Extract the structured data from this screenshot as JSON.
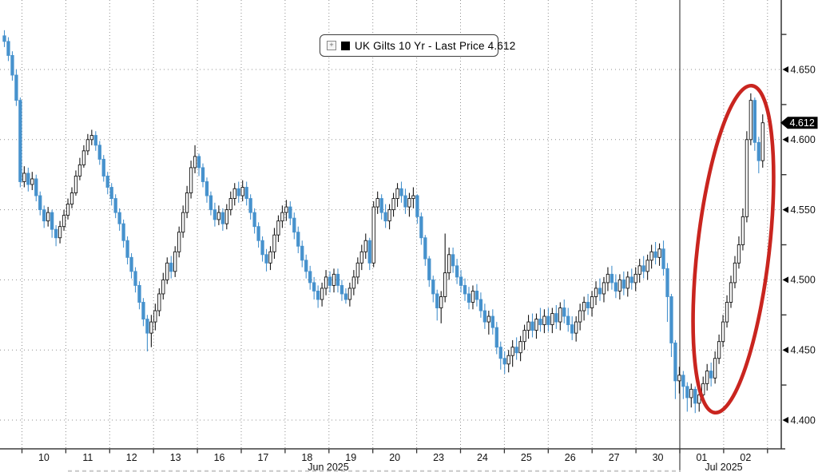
{
  "chart": {
    "legend": {
      "expander_glyph": "+",
      "series_marker_color": "#000000",
      "label": "UK Gilts 10 Yr - Last Price 4.612"
    },
    "last_price_badge": {
      "value": "4.612",
      "bg": "#000000",
      "text_color": "#ffffff"
    },
    "annotation": {
      "shape": "ellipse",
      "meaning": "highlight of Jul 01-02 yield spike",
      "color": "#c9251f"
    }
  },
  "chart_data": {
    "type": "candlestick",
    "title": "UK Gilts 10 Yr - Last Price 4.612",
    "series_name": "UK Gilts 10 Yr",
    "last_price": 4.612,
    "legend_position": "top-center",
    "grid": "dotted",
    "y_axis": {
      "side": "right",
      "min": 4.4,
      "max": 4.65,
      "major_tick": 0.05,
      "minor_tick": 0.025,
      "labels": [
        "4.650",
        "4.600",
        "4.550",
        "4.500",
        "4.450",
        "4.400"
      ]
    },
    "x_axis": {
      "day_labels": [
        "10",
        "11",
        "12",
        "13",
        "16",
        "17",
        "18",
        "19",
        "20",
        "23",
        "24",
        "25",
        "26",
        "27",
        "30",
        "01",
        "02"
      ],
      "month_labels": [
        "Jun 2025",
        "Jul 2025"
      ],
      "month_boundary_after_day_index": 14,
      "leading_stub_bars": 5,
      "bars_per_day": 11
    },
    "colors": {
      "up_fill": "#ffffff",
      "up_stroke": "#161616",
      "down": "#4792cd",
      "grid": "#8f8f8f",
      "axis": "#3d3d3d",
      "annotation_red": "#c9251f"
    },
    "bars_note": "each bar is [high, low, close]; open = previous bar close",
    "first_open": 4.674,
    "bars": [
      [
        4.678,
        4.666,
        4.67
      ],
      [
        4.673,
        4.656,
        4.66
      ],
      [
        4.663,
        4.642,
        4.646
      ],
      [
        4.65,
        4.624,
        4.628
      ],
      [
        4.63,
        4.566,
        4.57
      ],
      [
        4.581,
        4.566,
        4.576
      ],
      [
        4.58,
        4.563,
        4.568
      ],
      [
        4.577,
        4.564,
        4.572
      ],
      [
        4.575,
        4.556,
        4.56
      ],
      [
        4.563,
        4.546,
        4.55
      ],
      [
        4.553,
        4.537,
        4.542
      ],
      [
        4.552,
        4.538,
        4.548
      ],
      [
        4.55,
        4.53,
        4.536
      ],
      [
        4.539,
        4.524,
        4.53
      ],
      [
        4.542,
        4.526,
        4.538
      ],
      [
        4.55,
        4.535,
        4.546
      ],
      [
        4.558,
        4.543,
        4.554
      ],
      [
        4.566,
        4.551,
        4.562
      ],
      [
        4.578,
        4.56,
        4.574
      ],
      [
        4.587,
        4.571,
        4.582
      ],
      [
        4.596,
        4.58,
        4.592
      ],
      [
        4.604,
        4.589,
        4.6
      ],
      [
        4.607,
        4.596,
        4.603
      ],
      [
        4.606,
        4.592,
        4.596
      ],
      [
        4.599,
        4.582,
        4.586
      ],
      [
        4.589,
        4.57,
        4.574
      ],
      [
        4.577,
        4.561,
        4.566
      ],
      [
        4.569,
        4.553,
        4.558
      ],
      [
        4.561,
        4.544,
        4.548
      ],
      [
        4.551,
        4.535,
        4.54
      ],
      [
        4.543,
        4.523,
        4.528
      ],
      [
        4.531,
        4.511,
        4.516
      ],
      [
        4.519,
        4.501,
        4.506
      ],
      [
        4.509,
        4.491,
        4.496
      ],
      [
        4.499,
        4.479,
        4.484
      ],
      [
        4.487,
        4.467,
        4.472
      ],
      [
        4.475,
        4.449,
        4.462
      ],
      [
        4.475,
        4.452,
        4.47
      ],
      [
        4.483,
        4.464,
        4.478
      ],
      [
        4.494,
        4.474,
        4.49
      ],
      [
        4.505,
        4.486,
        4.5
      ],
      [
        4.516,
        4.497,
        4.512
      ],
      [
        4.517,
        4.501,
        4.506
      ],
      [
        4.524,
        4.502,
        4.52
      ],
      [
        4.538,
        4.516,
        4.534
      ],
      [
        4.553,
        4.53,
        4.548
      ],
      [
        4.567,
        4.544,
        4.562
      ],
      [
        4.585,
        4.558,
        4.58
      ],
      [
        4.596,
        4.576,
        4.588
      ],
      [
        4.59,
        4.574,
        4.58
      ],
      [
        4.583,
        4.566,
        4.57
      ],
      [
        4.573,
        4.555,
        4.56
      ],
      [
        4.563,
        4.546,
        4.55
      ],
      [
        4.555,
        4.538,
        4.543
      ],
      [
        4.553,
        4.539,
        4.548
      ],
      [
        4.551,
        4.535,
        4.54
      ],
      [
        4.554,
        4.536,
        4.55
      ],
      [
        4.563,
        4.546,
        4.558
      ],
      [
        4.569,
        4.553,
        4.565
      ],
      [
        4.57,
        4.555,
        4.56
      ],
      [
        4.571,
        4.556,
        4.566
      ],
      [
        4.57,
        4.553,
        4.558
      ],
      [
        4.561,
        4.543,
        4.548
      ],
      [
        4.551,
        4.533,
        4.538
      ],
      [
        4.541,
        4.523,
        4.528
      ],
      [
        4.531,
        4.513,
        4.518
      ],
      [
        4.522,
        4.506,
        4.512
      ],
      [
        4.524,
        4.507,
        4.52
      ],
      [
        4.537,
        4.515,
        4.532
      ],
      [
        4.546,
        4.527,
        4.542
      ],
      [
        4.553,
        4.537,
        4.548
      ],
      [
        4.557,
        4.542,
        4.552
      ],
      [
        4.556,
        4.539,
        4.544
      ],
      [
        4.548,
        4.529,
        4.534
      ],
      [
        4.538,
        4.519,
        4.524
      ],
      [
        4.528,
        4.509,
        4.514
      ],
      [
        4.518,
        4.501,
        4.506
      ],
      [
        4.51,
        4.493,
        4.498
      ],
      [
        4.502,
        4.486,
        4.492
      ],
      [
        4.496,
        4.48,
        4.486
      ],
      [
        4.498,
        4.481,
        4.494
      ],
      [
        4.507,
        4.489,
        4.502
      ],
      [
        4.506,
        4.491,
        4.496
      ],
      [
        4.508,
        4.491,
        4.504
      ],
      [
        4.508,
        4.491,
        4.496
      ],
      [
        4.5,
        4.485,
        4.49
      ],
      [
        4.494,
        4.483,
        4.486
      ],
      [
        4.498,
        4.481,
        4.494
      ],
      [
        4.507,
        4.489,
        4.502
      ],
      [
        4.516,
        4.497,
        4.512
      ],
      [
        4.525,
        4.507,
        4.52
      ],
      [
        4.533,
        4.515,
        4.528
      ],
      [
        4.53,
        4.507,
        4.512
      ],
      [
        4.556,
        4.509,
        4.552
      ],
      [
        4.563,
        4.547,
        4.558
      ],
      [
        4.561,
        4.543,
        4.548
      ],
      [
        4.554,
        4.537,
        4.542
      ],
      [
        4.554,
        4.536,
        4.55
      ],
      [
        4.562,
        4.545,
        4.558
      ],
      [
        4.569,
        4.552,
        4.565
      ],
      [
        4.57,
        4.555,
        4.56
      ],
      [
        4.565,
        4.547,
        4.552
      ],
      [
        4.562,
        4.545,
        4.558
      ],
      [
        4.566,
        4.551,
        4.56
      ],
      [
        4.561,
        4.54,
        4.545
      ],
      [
        4.548,
        4.525,
        4.53
      ],
      [
        4.532,
        4.51,
        4.515
      ],
      [
        4.517,
        4.495,
        4.5
      ],
      [
        4.503,
        4.484,
        4.49
      ],
      [
        4.493,
        4.471,
        4.48
      ],
      [
        4.492,
        4.469,
        4.488
      ],
      [
        4.533,
        4.484,
        4.505
      ],
      [
        4.523,
        4.5,
        4.518
      ],
      [
        4.523,
        4.505,
        4.51
      ],
      [
        4.515,
        4.497,
        4.502
      ],
      [
        4.507,
        4.491,
        4.496
      ],
      [
        4.501,
        4.485,
        4.49
      ],
      [
        4.495,
        4.479,
        4.484
      ],
      [
        4.496,
        4.479,
        4.492
      ],
      [
        4.497,
        4.481,
        4.486
      ],
      [
        4.491,
        4.473,
        4.478
      ],
      [
        4.483,
        4.465,
        4.47
      ],
      [
        4.478,
        4.461,
        4.474
      ],
      [
        4.479,
        4.461,
        4.466
      ],
      [
        4.47,
        4.447,
        4.452
      ],
      [
        4.456,
        4.436,
        4.444
      ],
      [
        4.449,
        4.433,
        4.44
      ],
      [
        4.45,
        4.434,
        4.446
      ],
      [
        4.457,
        4.438,
        4.452
      ],
      [
        4.459,
        4.443,
        4.448
      ],
      [
        4.46,
        4.442,
        4.456
      ],
      [
        4.468,
        4.45,
        4.464
      ],
      [
        4.475,
        4.458,
        4.47
      ],
      [
        4.476,
        4.459,
        4.464
      ],
      [
        4.476,
        4.458,
        4.472
      ],
      [
        4.48,
        4.463,
        4.468
      ],
      [
        4.479,
        4.462,
        4.474
      ],
      [
        4.48,
        4.463,
        4.468
      ],
      [
        4.48,
        4.462,
        4.476
      ],
      [
        4.482,
        4.465,
        4.47
      ],
      [
        4.484,
        4.464,
        4.48
      ],
      [
        4.486,
        4.469,
        4.474
      ],
      [
        4.48,
        4.463,
        4.468
      ],
      [
        4.474,
        4.457,
        4.462
      ],
      [
        4.474,
        4.456,
        4.47
      ],
      [
        4.483,
        4.464,
        4.478
      ],
      [
        4.488,
        4.471,
        4.484
      ],
      [
        4.49,
        4.475,
        4.48
      ],
      [
        4.492,
        4.474,
        4.488
      ],
      [
        4.499,
        4.482,
        4.494
      ],
      [
        4.501,
        4.485,
        4.49
      ],
      [
        4.502,
        4.484,
        4.498
      ],
      [
        4.509,
        4.492,
        4.504
      ],
      [
        4.51,
        4.493,
        4.498
      ],
      [
        4.504,
        4.487,
        4.492
      ],
      [
        4.504,
        4.486,
        4.5
      ],
      [
        4.506,
        4.489,
        4.494
      ],
      [
        4.506,
        4.488,
        4.502
      ],
      [
        4.508,
        4.493,
        4.498
      ],
      [
        4.509,
        4.492,
        4.504
      ],
      [
        4.515,
        4.498,
        4.51
      ],
      [
        4.517,
        4.501,
        4.506
      ],
      [
        4.518,
        4.5,
        4.514
      ],
      [
        4.525,
        4.508,
        4.52
      ],
      [
        4.527,
        4.511,
        4.516
      ],
      [
        4.526,
        4.51,
        4.522
      ],
      [
        4.528,
        4.503,
        4.508
      ],
      [
        4.512,
        4.47,
        4.488
      ],
      [
        4.49,
        4.445,
        4.455
      ],
      [
        4.457,
        4.415,
        4.428
      ],
      [
        4.438,
        4.419,
        4.432
      ],
      [
        4.435,
        4.415,
        4.424
      ],
      [
        4.427,
        4.406,
        4.416
      ],
      [
        4.426,
        4.409,
        4.422
      ],
      [
        4.424,
        4.405,
        4.412
      ],
      [
        4.423,
        4.406,
        4.418
      ],
      [
        4.431,
        4.412,
        4.426
      ],
      [
        4.44,
        4.421,
        4.435
      ],
      [
        4.441,
        4.424,
        4.43
      ],
      [
        4.449,
        4.426,
        4.444
      ],
      [
        4.461,
        4.44,
        4.456
      ],
      [
        4.475,
        4.452,
        4.47
      ],
      [
        4.489,
        4.466,
        4.484
      ],
      [
        4.503,
        4.48,
        4.498
      ],
      [
        4.517,
        4.494,
        4.512
      ],
      [
        4.531,
        4.508,
        4.525
      ],
      [
        4.551,
        4.521,
        4.545
      ],
      [
        4.606,
        4.541,
        4.6
      ],
      [
        4.633,
        4.596,
        4.628
      ],
      [
        4.63,
        4.592,
        4.598
      ],
      [
        4.602,
        4.576,
        4.585
      ],
      [
        4.618,
        4.58,
        4.612
      ]
    ]
  }
}
